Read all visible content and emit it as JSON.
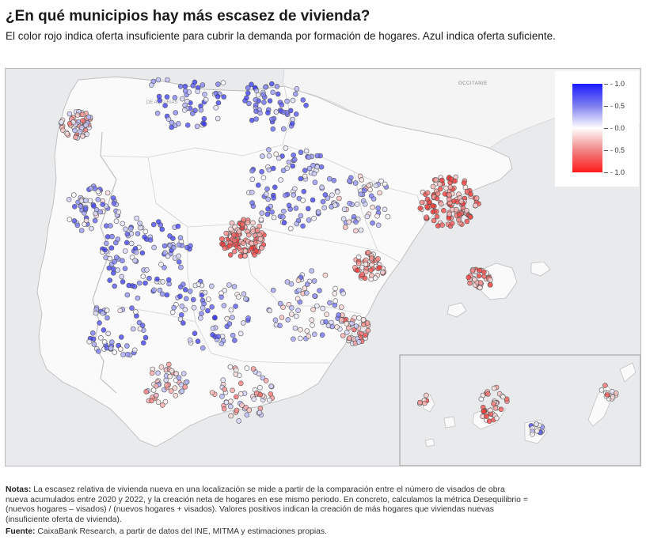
{
  "header": {
    "title": "¿En qué municipios hay más escasez de vivienda?",
    "subtitle": "El color rojo indica oferta insuficiente para cubrir la demanda por formación de hogares. Azul indica oferta suficiente."
  },
  "map": {
    "labels": {
      "sea_label": "OCCITANIE",
      "region_label": "DE ASTURIAS"
    },
    "colors": {
      "sea": "#e8eaec",
      "land": "#fafafa",
      "border": "#c9c9c9",
      "shortage": "#ff1a1a",
      "surplus": "#1a1aff"
    }
  },
  "legend": {
    "ticks": [
      "- 1.0",
      "- 0.5",
      "- 0.0",
      "- 0.5",
      "- 1.0"
    ],
    "values": [
      -1.0,
      -0.5,
      0.0,
      0.5,
      1.0
    ]
  },
  "footer": {
    "notes_label": "Notas:",
    "notes_text": " La escasez relativa de vivienda nueva en una localización se mide a partir de la comparación entre el número de visados de obra nueva acumulados entre 2020 y 2022, y la creación neta de hogares en ese mismo periodo. En concreto, calculamos la métrica Desequilibrio = (nuevos hogares – visados) / (nuevos hogares + visados). Valores positivos indican la creación de más hogares que viviendas nuevas (insuficiente oferta de vivienda).",
    "source_label": "Fuente:",
    "source_text": " CaixaBank Research, a partir de datos del INE, MITMA y estimaciones propias."
  }
}
